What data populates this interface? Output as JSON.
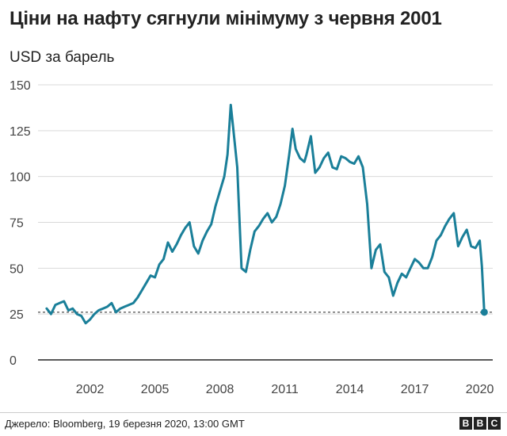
{
  "header": {
    "title": "Ціни на нафту сягнули мінімуму з червня 2001",
    "subtitle": "USD за барель"
  },
  "footer": {
    "source": "Джерело: Bloomberg, 19 березня 2020, 13:00 GMT",
    "logo_letters": [
      "B",
      "B",
      "C"
    ]
  },
  "colors": {
    "line": "#1a7f99",
    "axis": "#222222",
    "grid": "#d9d9d9",
    "dashed": "#222222"
  },
  "chart_data": {
    "type": "line",
    "title": "Ціни на нафту сягнули мінімуму з червня 2001",
    "ylabel": "USD за барель",
    "xlabel": "",
    "ylim": [
      0,
      150
    ],
    "xlim": [
      1999.6,
      2020.6
    ],
    "yticks": [
      0,
      25,
      50,
      75,
      100,
      125,
      150
    ],
    "xticks": [
      2002,
      2005,
      2008,
      2011,
      2014,
      2017,
      2020
    ],
    "grid": true,
    "reference_line": {
      "y": 26,
      "style": "dashed"
    },
    "end_marker": {
      "x": 2020.21,
      "y": 26
    },
    "series": [
      {
        "x": [
          2000.0,
          2000.2,
          2000.4,
          2000.6,
          2000.8,
          2001.0,
          2001.2,
          2001.4,
          2001.6,
          2001.8,
          2002.0,
          2002.2,
          2002.4,
          2002.6,
          2002.8,
          2003.0,
          2003.2,
          2003.4,
          2003.6,
          2003.8,
          2004.0,
          2004.2,
          2004.4,
          2004.6,
          2004.8,
          2005.0,
          2005.2,
          2005.4,
          2005.6,
          2005.8,
          2006.0,
          2006.2,
          2006.4,
          2006.6,
          2006.8,
          2007.0,
          2007.2,
          2007.4,
          2007.6,
          2007.8,
          2008.0,
          2008.2,
          2008.35,
          2008.5,
          2008.6,
          2008.8,
          2009.0,
          2009.2,
          2009.4,
          2009.6,
          2009.8,
          2010.0,
          2010.2,
          2010.4,
          2010.6,
          2010.8,
          2011.0,
          2011.2,
          2011.35,
          2011.5,
          2011.7,
          2011.9,
          2012.0,
          2012.2,
          2012.4,
          2012.6,
          2012.8,
          2013.0,
          2013.2,
          2013.4,
          2013.6,
          2013.8,
          2014.0,
          2014.2,
          2014.4,
          2014.6,
          2014.8,
          2015.0,
          2015.2,
          2015.4,
          2015.6,
          2015.8,
          2016.0,
          2016.2,
          2016.4,
          2016.6,
          2016.8,
          2017.0,
          2017.2,
          2017.4,
          2017.6,
          2017.8,
          2018.0,
          2018.2,
          2018.4,
          2018.6,
          2018.8,
          2019.0,
          2019.2,
          2019.4,
          2019.6,
          2019.8,
          2020.0,
          2020.1,
          2020.21
        ],
        "values": [
          28,
          25,
          30,
          31,
          32,
          27,
          28,
          25,
          24,
          20,
          22,
          25,
          27,
          28,
          29,
          31,
          26,
          28,
          29,
          30,
          31,
          34,
          38,
          42,
          46,
          45,
          52,
          55,
          64,
          59,
          63,
          68,
          72,
          75,
          62,
          58,
          65,
          70,
          74,
          84,
          92,
          100,
          112,
          139,
          128,
          105,
          50,
          48,
          60,
          70,
          73,
          77,
          80,
          75,
          78,
          85,
          95,
          112,
          126,
          115,
          110,
          108,
          112,
          122,
          102,
          105,
          110,
          113,
          105,
          104,
          111,
          110,
          108,
          107,
          111,
          105,
          85,
          50,
          60,
          63,
          48,
          45,
          35,
          42,
          47,
          45,
          50,
          55,
          53,
          50,
          50,
          56,
          65,
          68,
          73,
          77,
          80,
          62,
          67,
          71,
          62,
          61,
          65,
          51,
          26
        ]
      }
    ]
  }
}
